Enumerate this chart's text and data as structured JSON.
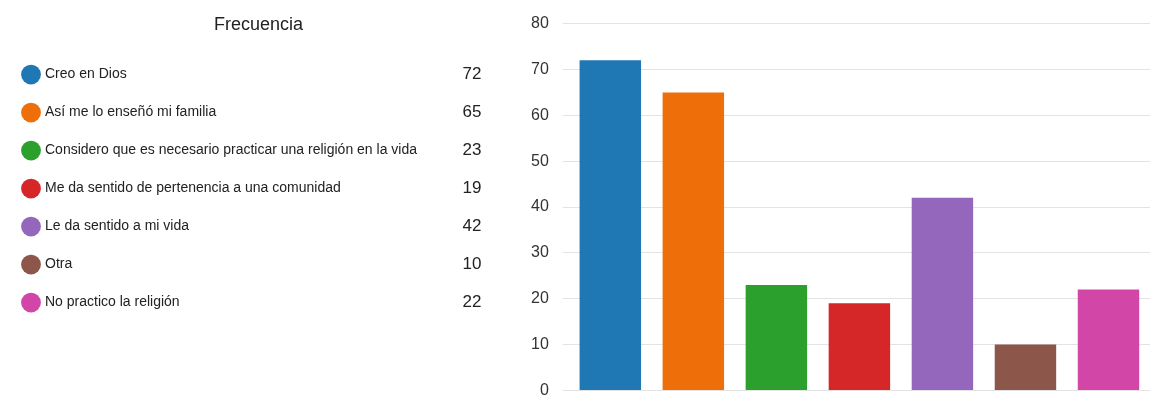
{
  "chart_data": {
    "type": "bar",
    "legend_title": "Frecuencia",
    "categories": [
      null
    ],
    "series": [
      {
        "name": "Creo en Dios",
        "color": "#1f77b4",
        "values": [
          72
        ]
      },
      {
        "name": "Así me lo enseñó mi familia",
        "color": "#ee6f0a",
        "values": [
          65
        ]
      },
      {
        "name": "Considero que es necesario practicar una religión en la vida",
        "color": "#2ca02c",
        "values": [
          23
        ]
      },
      {
        "name": "Me da sentido de pertenencia a una comunidad",
        "color": "#d62728",
        "values": [
          19
        ]
      },
      {
        "name": "Le da sentido a mi vida",
        "color": "#9467bd",
        "values": [
          42
        ]
      },
      {
        "name": "Otra",
        "color": "#8c564b",
        "values": [
          10
        ]
      },
      {
        "name": "No practico la religión",
        "color": "#d246a8",
        "values": [
          22
        ]
      }
    ],
    "ylim": [
      0,
      80
    ],
    "yticks": [
      0,
      10,
      20,
      30,
      40,
      50,
      60,
      70,
      80
    ],
    "annotations": [
      "72",
      "65",
      "23",
      "19",
      "42",
      "10",
      "22"
    ],
    "grid": "y",
    "legend": "left",
    "tick_labels": "y"
  }
}
